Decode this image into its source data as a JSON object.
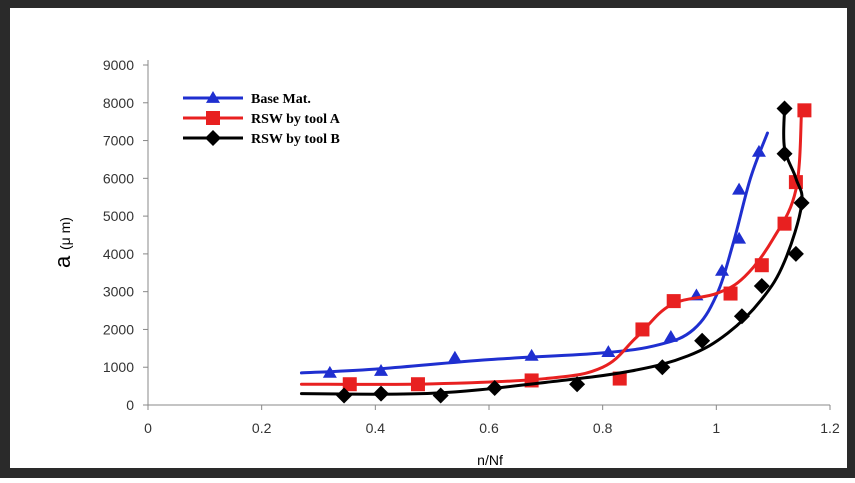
{
  "chart_data": {
    "type": "line",
    "xlabel": "n/Nf",
    "ylabel_main": "a",
    "ylabel_unit": "(μ m)",
    "xlim": [
      0,
      1.2
    ],
    "ylim": [
      0,
      9000
    ],
    "xticks": [
      0,
      0.2,
      0.4,
      0.6,
      0.8,
      1,
      1.2
    ],
    "xtick_labels": [
      "0",
      "0.2",
      "0.4",
      "0.6",
      "0.8",
      "1",
      "1.2"
    ],
    "yticks": [
      0,
      1000,
      2000,
      3000,
      4000,
      5000,
      6000,
      7000,
      8000,
      9000
    ],
    "ytick_labels": [
      "0",
      "1000",
      "2000",
      "3000",
      "4000",
      "5000",
      "6000",
      "7000",
      "8000",
      "9000"
    ],
    "grid": false,
    "legend_position": "top-left",
    "series": [
      {
        "name": "Base Mat.",
        "color": "#1f2fd0",
        "marker": "triangle",
        "points": [
          [
            0.32,
            850
          ],
          [
            0.41,
            900
          ],
          [
            0.54,
            1250
          ],
          [
            0.675,
            1300
          ],
          [
            0.81,
            1400
          ],
          [
            0.92,
            1800
          ],
          [
            0.965,
            2900
          ],
          [
            1.01,
            3550
          ],
          [
            1.04,
            4400
          ],
          [
            1.04,
            5700
          ],
          [
            1.075,
            6700
          ]
        ],
        "fit": [
          [
            0.27,
            850
          ],
          [
            0.4,
            950
          ],
          [
            0.6,
            1200
          ],
          [
            0.8,
            1380
          ],
          [
            0.9,
            1600
          ],
          [
            0.96,
            2000
          ],
          [
            1.0,
            2900
          ],
          [
            1.03,
            4300
          ],
          [
            1.06,
            6000
          ],
          [
            1.09,
            7200
          ]
        ]
      },
      {
        "name": "RSW by tool A",
        "color": "#e82020",
        "marker": "square",
        "points": [
          [
            0.355,
            550
          ],
          [
            0.475,
            550
          ],
          [
            0.675,
            650
          ],
          [
            0.83,
            700
          ],
          [
            0.87,
            2000
          ],
          [
            0.925,
            2750
          ],
          [
            1.025,
            2950
          ],
          [
            1.08,
            3700
          ],
          [
            1.12,
            4800
          ],
          [
            1.14,
            5900
          ],
          [
            1.155,
            7800
          ]
        ],
        "fit": [
          [
            0.27,
            550
          ],
          [
            0.5,
            560
          ],
          [
            0.7,
            700
          ],
          [
            0.8,
            1000
          ],
          [
            0.86,
            1800
          ],
          [
            0.92,
            2650
          ],
          [
            1.0,
            2950
          ],
          [
            1.05,
            3400
          ],
          [
            1.1,
            4400
          ],
          [
            1.14,
            5700
          ],
          [
            1.15,
            7800
          ]
        ]
      },
      {
        "name": "RSW by tool B",
        "color": "#000000",
        "marker": "diamond",
        "points": [
          [
            0.345,
            250
          ],
          [
            0.41,
            300
          ],
          [
            0.515,
            250
          ],
          [
            0.61,
            450
          ],
          [
            0.755,
            550
          ],
          [
            0.905,
            1000
          ],
          [
            0.975,
            1700
          ],
          [
            1.045,
            2350
          ],
          [
            1.08,
            3150
          ],
          [
            1.14,
            4000
          ],
          [
            1.15,
            5350
          ],
          [
            1.12,
            6650
          ],
          [
            1.12,
            7850
          ]
        ],
        "fit": [
          [
            0.27,
            300
          ],
          [
            0.5,
            310
          ],
          [
            0.7,
            600
          ],
          [
            0.85,
            900
          ],
          [
            0.95,
            1300
          ],
          [
            1.02,
            1900
          ],
          [
            1.08,
            2800
          ],
          [
            1.12,
            3800
          ],
          [
            1.15,
            5300
          ],
          [
            1.14,
            6000
          ],
          [
            1.12,
            6800
          ],
          [
            1.12,
            7850
          ]
        ]
      }
    ]
  }
}
